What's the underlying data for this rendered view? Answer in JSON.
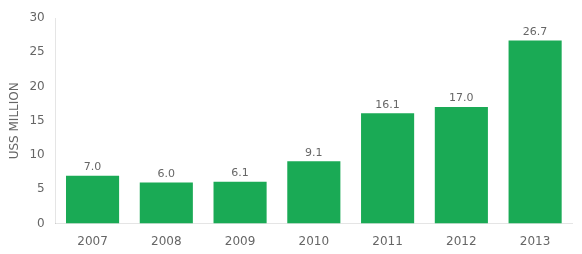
{
  "chart_data": {
    "type": "bar",
    "categories": [
      "2007",
      "2008",
      "2009",
      "2010",
      "2011",
      "2012",
      "2013"
    ],
    "values": [
      7.0,
      6.0,
      6.1,
      9.1,
      16.1,
      17.0,
      26.7
    ],
    "value_labels": [
      "7.0",
      "6.0",
      "6.1",
      "9.1",
      "16.1",
      "17.0",
      "26.7"
    ],
    "color": "#1aaa55",
    "ylabel": "USS MILLION",
    "ylim": [
      0,
      30
    ],
    "yticks": [
      0,
      5,
      10,
      15,
      20,
      25,
      30
    ],
    "grid": false,
    "data_labels": true
  }
}
